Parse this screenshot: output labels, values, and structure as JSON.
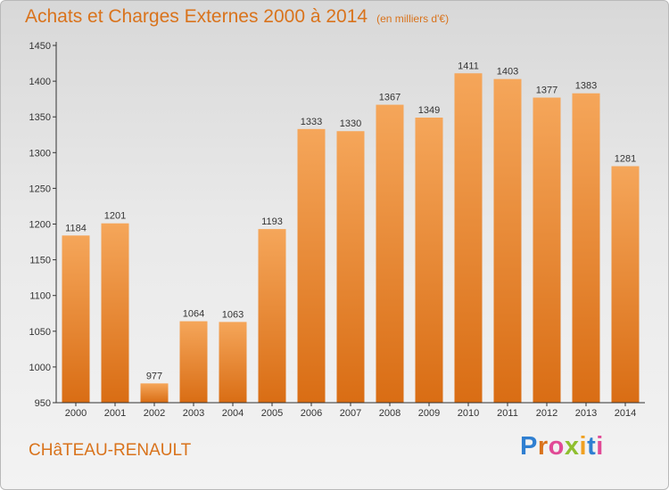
{
  "header": {
    "title": "Achats et Charges Externes 2000 à 2014",
    "unit": "(en milliers d'€)"
  },
  "footer": {
    "city": "CHâTEAU-RENAULT",
    "logo": "Proxiti"
  },
  "colors": {
    "accent": "#d9731c",
    "bar_top": "#f5a65a",
    "bar_bottom": "#d96d14",
    "logo_letters": [
      "#2f7fd1",
      "#d9731c",
      "#e14a96",
      "#8fbf2f",
      "#f0a020",
      "#2f7fd1",
      "#e14a96"
    ]
  },
  "chart_data": {
    "type": "bar",
    "title": "Achats et Charges Externes 2000 à 2014",
    "subtitle": "(en milliers d'€)",
    "categories": [
      "2000",
      "2001",
      "2002",
      "2003",
      "2004",
      "2005",
      "2006",
      "2007",
      "2008",
      "2009",
      "2010",
      "2011",
      "2012",
      "2013",
      "2014"
    ],
    "values": [
      1184,
      1201,
      977,
      1064,
      1063,
      1193,
      1333,
      1330,
      1367,
      1349,
      1411,
      1403,
      1377,
      1383,
      1281
    ],
    "ylim": [
      950,
      1450
    ],
    "yticks": [
      950,
      1000,
      1050,
      1100,
      1150,
      1200,
      1250,
      1300,
      1350,
      1400,
      1450
    ],
    "xlabel": "",
    "ylabel": "",
    "grid": false,
    "legend": "none"
  }
}
